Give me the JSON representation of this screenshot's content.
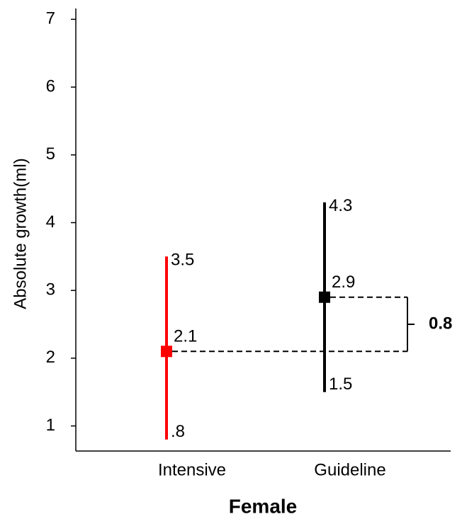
{
  "chart_data": {
    "type": "range-point",
    "y_label": "Absolute growth(ml)",
    "x_label": "Female",
    "categories": [
      "Intensive",
      "Guideline"
    ],
    "values": [
      2.1,
      2.9
    ],
    "lows": [
      0.8,
      1.5
    ],
    "low_labels": [
      ".8",
      "1.5"
    ],
    "highs": [
      3.5,
      4.3
    ],
    "colors": [
      "#ff0000",
      "#000000"
    ],
    "difference": 0.8,
    "ylim": [
      0.63,
      7.16
    ],
    "yticks": [
      1,
      2,
      3,
      4,
      5,
      6,
      7
    ]
  }
}
